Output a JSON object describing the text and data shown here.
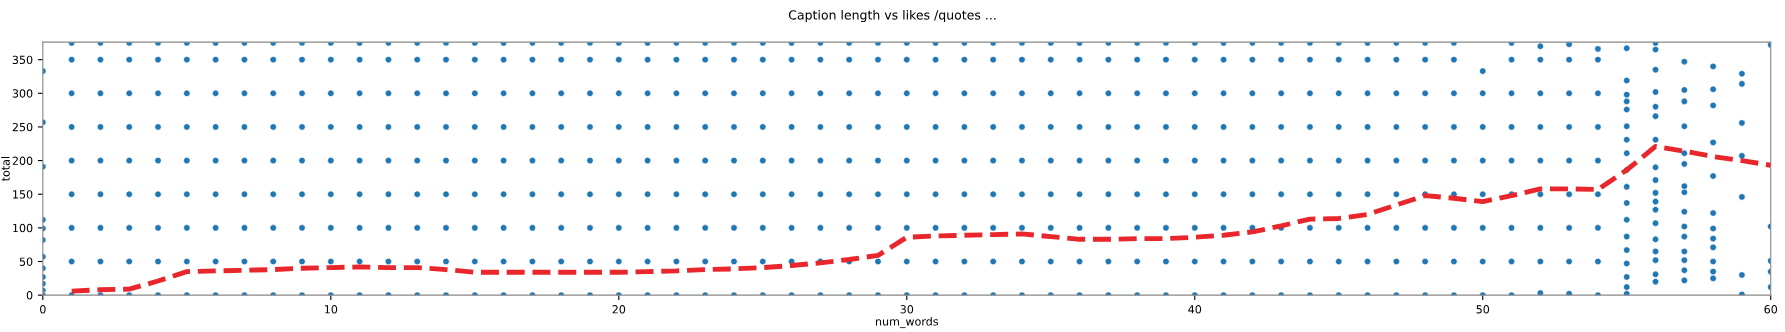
{
  "chart_data": {
    "type": "scatter",
    "title": "Caption length vs likes /quotes ...",
    "xlabel": "num_words",
    "ylabel": "total",
    "xlim": [
      0,
      60
    ],
    "ylim": [
      0,
      376
    ],
    "xticks": [
      0,
      10,
      20,
      30,
      40,
      50,
      60
    ],
    "yticks": [
      0,
      50,
      100,
      150,
      200,
      250,
      300,
      350
    ],
    "grid": false,
    "series": [
      {
        "color": "#1f77b4",
        "marker": "circle",
        "x": [
          0,
          0,
          0,
          0,
          0,
          0,
          0,
          0,
          0,
          0,
          0,
          0,
          1,
          1,
          1,
          1,
          1,
          1,
          1,
          1,
          1,
          2,
          2,
          2,
          2,
          2,
          2,
          2,
          2,
          2,
          3,
          3,
          3,
          3,
          3,
          3,
          3,
          3,
          3,
          4,
          4,
          4,
          4,
          4,
          4,
          4,
          4,
          4,
          5,
          5,
          5,
          5,
          5,
          5,
          5,
          5,
          5,
          6,
          6,
          6,
          6,
          6,
          6,
          6,
          6,
          6,
          7,
          7,
          7,
          7,
          7,
          7,
          7,
          7,
          7,
          8,
          8,
          8,
          8,
          8,
          8,
          8,
          8,
          8,
          9,
          9,
          9,
          9,
          9,
          9,
          9,
          9,
          9,
          10,
          10,
          10,
          10,
          10,
          10,
          10,
          10,
          10,
          11,
          11,
          11,
          11,
          11,
          11,
          11,
          11,
          11,
          12,
          12,
          12,
          12,
          12,
          12,
          12,
          12,
          12,
          13,
          13,
          13,
          13,
          13,
          13,
          13,
          13,
          13,
          14,
          14,
          14,
          14,
          14,
          14,
          14,
          14,
          14,
          15,
          15,
          15,
          15,
          15,
          15,
          15,
          15,
          15,
          16,
          16,
          16,
          16,
          16,
          16,
          16,
          16,
          16,
          17,
          17,
          17,
          17,
          17,
          17,
          17,
          17,
          17,
          18,
          18,
          18,
          18,
          18,
          18,
          18,
          18,
          18,
          19,
          19,
          19,
          19,
          19,
          19,
          19,
          19,
          19,
          20,
          20,
          20,
          20,
          20,
          20,
          20,
          20,
          20,
          21,
          21,
          21,
          21,
          21,
          21,
          21,
          21,
          21,
          22,
          22,
          22,
          22,
          22,
          22,
          22,
          22,
          22,
          23,
          23,
          23,
          23,
          23,
          23,
          23,
          23,
          23,
          24,
          24,
          24,
          24,
          24,
          24,
          24,
          24,
          24,
          25,
          25,
          25,
          25,
          25,
          25,
          25,
          25,
          25,
          26,
          26,
          26,
          26,
          26,
          26,
          26,
          26,
          26,
          27,
          27,
          27,
          27,
          27,
          27,
          27,
          27,
          27,
          28,
          28,
          28,
          28,
          28,
          28,
          28,
          28,
          28,
          29,
          29,
          29,
          29,
          29,
          29,
          29,
          29,
          29,
          30,
          30,
          30,
          30,
          30,
          30,
          30,
          30,
          30,
          31,
          31,
          31,
          31,
          31,
          31,
          31,
          31,
          31,
          32,
          32,
          32,
          32,
          32,
          32,
          32,
          32,
          32,
          33,
          33,
          33,
          33,
          33,
          33,
          33,
          33,
          33,
          34,
          34,
          34,
          34,
          34,
          34,
          34,
          34,
          34,
          35,
          35,
          35,
          35,
          35,
          35,
          35,
          35,
          35,
          36,
          36,
          36,
          36,
          36,
          36,
          36,
          36,
          36,
          37,
          37,
          37,
          37,
          37,
          37,
          37,
          37,
          37,
          38,
          38,
          38,
          38,
          38,
          38,
          38,
          38,
          38,
          39,
          39,
          39,
          39,
          39,
          39,
          39,
          39,
          39,
          40,
          40,
          40,
          40,
          40,
          40,
          40,
          40,
          40,
          41,
          41,
          41,
          41,
          41,
          41,
          41,
          41,
          41,
          42,
          42,
          42,
          42,
          42,
          42,
          42,
          42,
          42,
          43,
          43,
          43,
          43,
          43,
          43,
          43,
          43,
          43,
          44,
          44,
          44,
          44,
          44,
          44,
          44,
          44,
          44,
          45,
          45,
          45,
          45,
          45,
          45,
          45,
          45,
          45,
          46,
          46,
          46,
          46,
          46,
          46,
          46,
          46,
          46,
          47,
          47,
          47,
          47,
          47,
          47,
          47,
          47,
          47,
          48,
          48,
          48,
          48,
          48,
          48,
          48,
          48,
          48,
          49,
          49,
          49,
          49,
          49,
          49,
          49,
          49,
          49,
          50,
          50,
          50,
          50,
          50,
          50,
          50,
          50,
          51,
          51,
          51,
          51,
          51,
          51,
          51,
          51,
          51,
          52,
          52,
          52,
          52,
          52,
          52,
          52,
          52,
          52,
          53,
          53,
          53,
          53,
          53,
          53,
          53,
          53,
          53,
          54,
          54,
          54,
          54,
          54,
          54,
          54,
          54,
          54,
          55,
          55,
          55,
          55,
          55,
          55,
          55,
          55,
          55,
          55,
          55,
          55,
          55,
          55,
          55,
          55,
          55,
          55,
          56,
          56,
          56,
          56,
          56,
          56,
          56,
          56,
          56,
          56,
          56,
          56,
          56,
          56,
          56,
          56,
          56,
          56,
          57,
          57,
          57,
          57,
          57,
          57,
          57,
          57,
          57,
          57,
          57,
          57,
          57,
          57,
          57,
          58,
          58,
          58,
          58,
          58,
          58,
          58,
          58,
          58,
          58,
          58,
          58,
          59,
          59,
          59,
          59,
          59,
          59,
          59,
          60,
          60,
          60,
          60,
          60
        ],
        "values": [
          333,
          257,
          191,
          112,
          99,
          82,
          57,
          40,
          27,
          17,
          7,
          0,
          0,
          50,
          100,
          150,
          200,
          250,
          300,
          350,
          375,
          0,
          50,
          100,
          150,
          200,
          250,
          300,
          350,
          375,
          0,
          50,
          100,
          150,
          200,
          250,
          300,
          350,
          375,
          0,
          50,
          100,
          150,
          200,
          250,
          300,
          350,
          375,
          0,
          50,
          100,
          150,
          200,
          250,
          300,
          350,
          375,
          0,
          50,
          100,
          150,
          200,
          250,
          300,
          350,
          375,
          0,
          50,
          100,
          150,
          200,
          250,
          300,
          350,
          375,
          0,
          50,
          100,
          150,
          200,
          250,
          300,
          350,
          375,
          0,
          50,
          100,
          150,
          200,
          250,
          300,
          350,
          375,
          0,
          50,
          100,
          150,
          200,
          250,
          300,
          350,
          375,
          0,
          50,
          100,
          150,
          200,
          250,
          300,
          350,
          375,
          0,
          50,
          100,
          150,
          200,
          250,
          300,
          350,
          375,
          0,
          50,
          100,
          150,
          200,
          250,
          300,
          350,
          375,
          0,
          50,
          100,
          150,
          200,
          250,
          300,
          350,
          375,
          0,
          50,
          100,
          150,
          200,
          250,
          300,
          350,
          375,
          0,
          50,
          100,
          150,
          200,
          250,
          300,
          350,
          375,
          0,
          50,
          100,
          150,
          200,
          250,
          300,
          350,
          375,
          0,
          50,
          100,
          150,
          200,
          250,
          300,
          350,
          375,
          0,
          50,
          100,
          150,
          200,
          250,
          300,
          350,
          375,
          0,
          50,
          100,
          150,
          200,
          250,
          300,
          350,
          375,
          0,
          50,
          100,
          150,
          200,
          250,
          300,
          350,
          375,
          0,
          50,
          100,
          150,
          200,
          250,
          300,
          350,
          375,
          0,
          50,
          100,
          150,
          200,
          250,
          300,
          350,
          375,
          0,
          50,
          100,
          150,
          200,
          250,
          300,
          350,
          375,
          0,
          50,
          100,
          150,
          200,
          250,
          300,
          350,
          375,
          0,
          50,
          100,
          150,
          200,
          250,
          300,
          350,
          375,
          0,
          50,
          100,
          150,
          200,
          250,
          300,
          350,
          375,
          0,
          50,
          100,
          150,
          200,
          250,
          300,
          350,
          375,
          0,
          50,
          100,
          150,
          200,
          250,
          300,
          350,
          375,
          0,
          50,
          100,
          150,
          200,
          250,
          300,
          350,
          375,
          0,
          50,
          100,
          150,
          200,
          250,
          300,
          350,
          375,
          0,
          50,
          100,
          150,
          200,
          250,
          300,
          350,
          375,
          0,
          50,
          100,
          150,
          200,
          250,
          300,
          350,
          375,
          0,
          50,
          100,
          150,
          200,
          250,
          300,
          350,
          375,
          0,
          50,
          100,
          150,
          200,
          250,
          300,
          350,
          375,
          0,
          50,
          100,
          150,
          200,
          250,
          300,
          350,
          375,
          0,
          50,
          100,
          150,
          200,
          250,
          300,
          350,
          375,
          0,
          50,
          100,
          150,
          200,
          250,
          300,
          350,
          375,
          0,
          50,
          100,
          150,
          200,
          250,
          300,
          350,
          375,
          0,
          50,
          100,
          150,
          200,
          250,
          300,
          350,
          375,
          0,
          50,
          100,
          150,
          200,
          250,
          300,
          350,
          375,
          0,
          50,
          100,
          150,
          200,
          250,
          300,
          350,
          375,
          0,
          50,
          100,
          150,
          200,
          250,
          300,
          350,
          375,
          0,
          50,
          100,
          150,
          200,
          250,
          300,
          350,
          375,
          0,
          50,
          100,
          150,
          200,
          250,
          300,
          350,
          375,
          0,
          50,
          100,
          150,
          200,
          250,
          300,
          350,
          375,
          0,
          50,
          100,
          150,
          200,
          250,
          300,
          350,
          375,
          0,
          50,
          100,
          150,
          200,
          250,
          300,
          350,
          375,
          0,
          50,
          100,
          150,
          200,
          250,
          300,
          350,
          375,
          0,
          50,
          100,
          150,
          200,
          250,
          300,
          333,
          0,
          50,
          100,
          150,
          200,
          250,
          300,
          350,
          375,
          3,
          50,
          100,
          150,
          200,
          250,
          300,
          350,
          370,
          2,
          50,
          100,
          150,
          200,
          250,
          300,
          350,
          373,
          0,
          50,
          100,
          150,
          200,
          250,
          300,
          350,
          366,
          2,
          12,
          27,
          47,
          67,
          87,
          112,
          137,
          161,
          186,
          211,
          231,
          251,
          276,
          288,
          298,
          319,
          367,
          20,
          31,
          52,
          65,
          83,
          107,
          127,
          139,
          152,
          171,
          190,
          231,
          266,
          280,
          302,
          335,
          365,
          375,
          22,
          37,
          52,
          65,
          87,
          102,
          124,
          153,
          162,
          195,
          211,
          251,
          288,
          305,
          347,
          25,
          35,
          50,
          71,
          84,
          99,
          122,
          177,
          227,
          282,
          306,
          340,
          1,
          30,
          146,
          207,
          256,
          314,
          329,
          12,
          35,
          51,
          102,
          372
        ]
      },
      {
        "type": "line",
        "color": "#e8262b",
        "line_style": "dashed",
        "marker": "none",
        "x": [
          1,
          2,
          3,
          4,
          5,
          6,
          7,
          8,
          9,
          10,
          11,
          12,
          13,
          14,
          15,
          16,
          17,
          18,
          19,
          20,
          21,
          22,
          23,
          24,
          25,
          26,
          27,
          28,
          29,
          30,
          31,
          32,
          33,
          34,
          35,
          36,
          37,
          38,
          39,
          40,
          41,
          42,
          43,
          44,
          45,
          46,
          47,
          48,
          49,
          50,
          51,
          52,
          53,
          54,
          55,
          56,
          57,
          58,
          59,
          60
        ],
        "values": [
          6,
          8,
          9,
          21,
          35,
          36,
          37,
          38,
          40,
          41,
          42,
          41,
          41,
          38,
          34,
          34,
          34,
          34,
          34,
          34,
          35,
          36,
          38,
          39,
          41,
          44,
          48,
          53,
          59,
          86,
          88,
          89,
          90,
          91,
          87,
          83,
          83,
          84,
          84,
          86,
          89,
          94,
          103,
          113,
          114,
          120,
          134,
          148,
          144,
          139,
          148,
          158,
          158,
          157,
          186,
          221,
          214,
          206,
          200,
          193
        ]
      }
    ]
  }
}
